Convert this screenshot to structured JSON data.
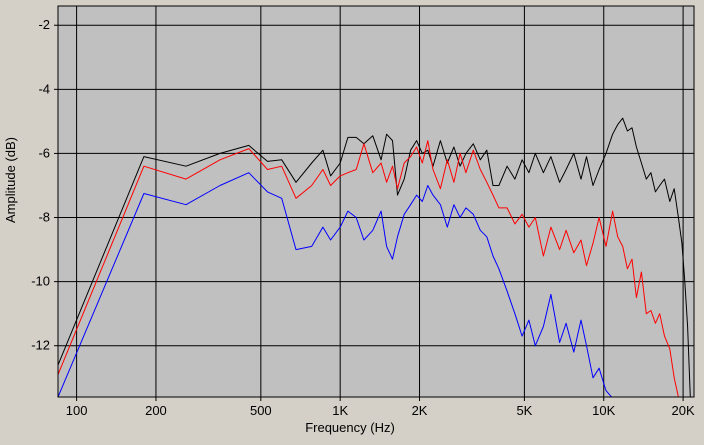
{
  "chart_data": {
    "type": "line",
    "title": "",
    "xlabel": "Frequency (Hz)",
    "ylabel": "Amplitude (dB)",
    "x_scale": "log",
    "xlim": [
      85,
      22000
    ],
    "ylim": [
      -13.6,
      -1.4
    ],
    "grid": true,
    "x_ticks": [
      {
        "value": 100,
        "label": "100"
      },
      {
        "value": 200,
        "label": "200"
      },
      {
        "value": 500,
        "label": "500"
      },
      {
        "value": 1000,
        "label": "1K"
      },
      {
        "value": 2000,
        "label": "2K"
      },
      {
        "value": 5000,
        "label": "5K"
      },
      {
        "value": 10000,
        "label": "10K"
      },
      {
        "value": 20000,
        "label": "20K"
      }
    ],
    "y_ticks": [
      -2,
      -4,
      -6,
      -8,
      -10,
      -12
    ],
    "colors": {
      "plot_background": "#c0c0c0",
      "frame_background": "#d4d0c8",
      "grid": "#000000"
    },
    "series": [
      {
        "color": "#000000",
        "points": [
          [
            85,
            -12.6
          ],
          [
            180,
            -6.1
          ],
          [
            260,
            -6.4
          ],
          [
            350,
            -6.0
          ],
          [
            450,
            -5.75
          ],
          [
            530,
            -6.25
          ],
          [
            600,
            -6.2
          ],
          [
            680,
            -6.9
          ],
          [
            780,
            -6.3
          ],
          [
            860,
            -5.9
          ],
          [
            920,
            -6.7
          ],
          [
            1000,
            -6.3
          ],
          [
            1070,
            -5.5
          ],
          [
            1150,
            -5.5
          ],
          [
            1230,
            -5.7
          ],
          [
            1330,
            -5.45
          ],
          [
            1430,
            -6.2
          ],
          [
            1500,
            -5.4
          ],
          [
            1580,
            -5.6
          ],
          [
            1650,
            -7.3
          ],
          [
            1750,
            -6.8
          ],
          [
            1850,
            -5.9
          ],
          [
            1950,
            -5.6
          ],
          [
            2050,
            -6.0
          ],
          [
            2150,
            -5.9
          ],
          [
            2250,
            -6.4
          ],
          [
            2400,
            -5.6
          ],
          [
            2550,
            -6.3
          ],
          [
            2700,
            -5.8
          ],
          [
            2850,
            -6.4
          ],
          [
            3000,
            -6.0
          ],
          [
            3200,
            -5.7
          ],
          [
            3400,
            -6.2
          ],
          [
            3600,
            -5.9
          ],
          [
            3800,
            -7.0
          ],
          [
            4000,
            -7.0
          ],
          [
            4300,
            -6.4
          ],
          [
            4600,
            -6.8
          ],
          [
            4900,
            -6.2
          ],
          [
            5200,
            -6.6
          ],
          [
            5500,
            -6.0
          ],
          [
            5900,
            -6.6
          ],
          [
            6300,
            -6.1
          ],
          [
            6800,
            -6.9
          ],
          [
            7200,
            -6.5
          ],
          [
            7700,
            -6.0
          ],
          [
            8200,
            -6.8
          ],
          [
            8600,
            -6.1
          ],
          [
            9100,
            -7.0
          ],
          [
            9600,
            -6.5
          ],
          [
            10200,
            -6.0
          ],
          [
            10800,
            -5.4
          ],
          [
            11300,
            -5.1
          ],
          [
            11800,
            -4.9
          ],
          [
            12300,
            -5.3
          ],
          [
            12800,
            -5.2
          ],
          [
            13300,
            -5.8
          ],
          [
            13900,
            -6.3
          ],
          [
            14500,
            -6.8
          ],
          [
            15100,
            -6.6
          ],
          [
            15700,
            -7.2
          ],
          [
            16300,
            -7.0
          ],
          [
            17000,
            -6.8
          ],
          [
            17800,
            -7.5
          ],
          [
            18500,
            -7.1
          ],
          [
            19200,
            -8.0
          ],
          [
            19800,
            -8.8
          ],
          [
            20300,
            -10.0
          ],
          [
            20800,
            -11.4
          ],
          [
            21300,
            -13.6
          ]
        ]
      },
      {
        "color": "#ff0000",
        "points": [
          [
            85,
            -12.9
          ],
          [
            180,
            -6.4
          ],
          [
            260,
            -6.8
          ],
          [
            350,
            -6.2
          ],
          [
            450,
            -5.85
          ],
          [
            530,
            -6.5
          ],
          [
            600,
            -6.4
          ],
          [
            680,
            -7.4
          ],
          [
            780,
            -7.0
          ],
          [
            860,
            -6.5
          ],
          [
            920,
            -7.0
          ],
          [
            1000,
            -6.7
          ],
          [
            1070,
            -6.6
          ],
          [
            1150,
            -6.5
          ],
          [
            1230,
            -5.7
          ],
          [
            1330,
            -6.6
          ],
          [
            1430,
            -6.3
          ],
          [
            1500,
            -6.9
          ],
          [
            1580,
            -6.4
          ],
          [
            1650,
            -7.1
          ],
          [
            1750,
            -6.3
          ],
          [
            1850,
            -6.1
          ],
          [
            1950,
            -5.8
          ],
          [
            2050,
            -6.3
          ],
          [
            2150,
            -5.6
          ],
          [
            2250,
            -6.5
          ],
          [
            2400,
            -7.1
          ],
          [
            2550,
            -6.2
          ],
          [
            2700,
            -6.9
          ],
          [
            2850,
            -6.0
          ],
          [
            3000,
            -6.6
          ],
          [
            3200,
            -5.9
          ],
          [
            3400,
            -6.5
          ],
          [
            3600,
            -6.9
          ],
          [
            3800,
            -7.3
          ],
          [
            4000,
            -7.7
          ],
          [
            4300,
            -7.7
          ],
          [
            4600,
            -8.2
          ],
          [
            4900,
            -7.9
          ],
          [
            5200,
            -8.3
          ],
          [
            5500,
            -8.0
          ],
          [
            5900,
            -9.2
          ],
          [
            6300,
            -8.3
          ],
          [
            6800,
            -9.0
          ],
          [
            7200,
            -8.4
          ],
          [
            7700,
            -9.1
          ],
          [
            8200,
            -8.7
          ],
          [
            8600,
            -9.5
          ],
          [
            9100,
            -8.8
          ],
          [
            9600,
            -8.0
          ],
          [
            10200,
            -8.9
          ],
          [
            10800,
            -7.8
          ],
          [
            11300,
            -8.6
          ],
          [
            11800,
            -8.9
          ],
          [
            12300,
            -9.6
          ],
          [
            12800,
            -9.3
          ],
          [
            13300,
            -10.5
          ],
          [
            13900,
            -9.7
          ],
          [
            14500,
            -11.0
          ],
          [
            15100,
            -10.9
          ],
          [
            15700,
            -11.3
          ],
          [
            16300,
            -11.0
          ],
          [
            17000,
            -11.7
          ],
          [
            17800,
            -12.1
          ],
          [
            18500,
            -13.0
          ],
          [
            19200,
            -13.6
          ]
        ]
      },
      {
        "color": "#0000ff",
        "points": [
          [
            85,
            -13.6
          ],
          [
            180,
            -7.25
          ],
          [
            260,
            -7.6
          ],
          [
            350,
            -7.0
          ],
          [
            450,
            -6.6
          ],
          [
            530,
            -7.2
          ],
          [
            600,
            -7.4
          ],
          [
            680,
            -9.0
          ],
          [
            780,
            -8.9
          ],
          [
            860,
            -8.3
          ],
          [
            920,
            -8.7
          ],
          [
            1000,
            -8.3
          ],
          [
            1070,
            -7.8
          ],
          [
            1150,
            -8.0
          ],
          [
            1230,
            -8.7
          ],
          [
            1330,
            -8.4
          ],
          [
            1430,
            -7.8
          ],
          [
            1500,
            -8.9
          ],
          [
            1580,
            -9.3
          ],
          [
            1650,
            -8.6
          ],
          [
            1750,
            -7.9
          ],
          [
            1850,
            -7.6
          ],
          [
            1950,
            -7.3
          ],
          [
            2050,
            -7.5
          ],
          [
            2150,
            -7.0
          ],
          [
            2250,
            -7.3
          ],
          [
            2400,
            -7.6
          ],
          [
            2550,
            -8.3
          ],
          [
            2700,
            -7.6
          ],
          [
            2850,
            -8.0
          ],
          [
            3000,
            -7.7
          ],
          [
            3200,
            -7.9
          ],
          [
            3400,
            -8.4
          ],
          [
            3600,
            -8.6
          ],
          [
            3800,
            -9.2
          ],
          [
            4000,
            -9.6
          ],
          [
            4300,
            -10.3
          ],
          [
            4600,
            -11.0
          ],
          [
            4900,
            -11.7
          ],
          [
            5200,
            -11.2
          ],
          [
            5500,
            -12.0
          ],
          [
            5900,
            -11.4
          ],
          [
            6300,
            -10.4
          ],
          [
            6800,
            -11.9
          ],
          [
            7200,
            -11.3
          ],
          [
            7700,
            -12.2
          ],
          [
            8200,
            -11.2
          ],
          [
            8600,
            -12.0
          ],
          [
            9100,
            -13.0
          ],
          [
            9600,
            -12.7
          ],
          [
            10200,
            -13.4
          ],
          [
            10700,
            -13.6
          ]
        ]
      }
    ]
  }
}
